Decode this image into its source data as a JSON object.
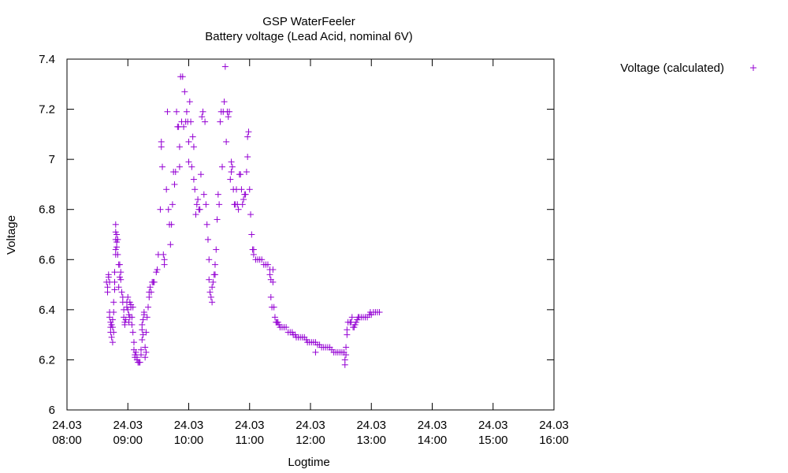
{
  "chart_data": {
    "type": "scatter",
    "title": "GSP WaterFeeler",
    "subtitle": "Battery voltage (Lead Acid, nominal 6V)",
    "xlabel": "Logtime",
    "ylabel": "Voltage",
    "xlim": [
      "08:00",
      "16:00"
    ],
    "ylim": [
      6,
      7.4
    ],
    "grid": false,
    "legend_position": "top-right, outside plot",
    "series_color": "#9400d3",
    "marker": "plus",
    "x_ticks": [
      {
        "date": "24.03",
        "time": "08:00",
        "hour": 8
      },
      {
        "date": "24.03",
        "time": "09:00",
        "hour": 9
      },
      {
        "date": "24.03",
        "time": "10:00",
        "hour": 10
      },
      {
        "date": "24.03",
        "time": "11:00",
        "hour": 11
      },
      {
        "date": "24.03",
        "time": "12:00",
        "hour": 12
      },
      {
        "date": "24.03",
        "time": "13:00",
        "hour": 13
      },
      {
        "date": "24.03",
        "time": "14:00",
        "hour": 14
      },
      {
        "date": "24.03",
        "time": "15:00",
        "hour": 15
      },
      {
        "date": "24.03",
        "time": "16:00",
        "hour": 16
      }
    ],
    "y_ticks": [
      {
        "value": 6,
        "label": "6"
      },
      {
        "value": 6.2,
        "label": "6.2"
      },
      {
        "value": 6.4,
        "label": "6.4"
      },
      {
        "value": 6.6,
        "label": "6.6"
      },
      {
        "value": 6.8,
        "label": "6.8"
      },
      {
        "value": 7,
        "label": "7"
      },
      {
        "value": 7.2,
        "label": "7.2"
      },
      {
        "value": 7.4,
        "label": "7.4"
      }
    ],
    "series": [
      {
        "name": "Voltage (calculated)",
        "points": [
          [
            "08:39",
            6.51
          ],
          [
            "08:40",
            6.49
          ],
          [
            "08:40",
            6.47
          ],
          [
            "08:41",
            6.53
          ],
          [
            "08:41",
            6.54
          ],
          [
            "08:42",
            6.51
          ],
          [
            "08:42",
            6.39
          ],
          [
            "08:42",
            6.37
          ],
          [
            "08:43",
            6.35
          ],
          [
            "08:43",
            6.33
          ],
          [
            "08:43",
            6.31
          ],
          [
            "08:44",
            6.29
          ],
          [
            "08:44",
            6.34
          ],
          [
            "08:45",
            6.33
          ],
          [
            "08:45",
            6.27
          ],
          [
            "08:45",
            6.36
          ],
          [
            "08:46",
            6.31
          ],
          [
            "08:46",
            6.39
          ],
          [
            "08:46",
            6.43
          ],
          [
            "08:47",
            6.51
          ],
          [
            "08:47",
            6.55
          ],
          [
            "08:47",
            6.48
          ],
          [
            "08:48",
            6.62
          ],
          [
            "08:48",
            6.64
          ],
          [
            "08:48",
            6.68
          ],
          [
            "08:48",
            6.71
          ],
          [
            "08:48",
            6.74
          ],
          [
            "08:49",
            6.7
          ],
          [
            "08:49",
            6.67
          ],
          [
            "08:49",
            6.65
          ],
          [
            "08:50",
            6.68
          ],
          [
            "08:50",
            6.62
          ],
          [
            "08:51",
            6.58
          ],
          [
            "08:51",
            6.49
          ],
          [
            "08:52",
            6.58
          ],
          [
            "08:52",
            6.53
          ],
          [
            "08:53",
            6.55
          ],
          [
            "08:53",
            6.52
          ],
          [
            "08:54",
            6.47
          ],
          [
            "08:55",
            6.45
          ],
          [
            "08:55",
            6.43
          ],
          [
            "08:56",
            6.4
          ],
          [
            "08:56",
            6.37
          ],
          [
            "08:57",
            6.35
          ],
          [
            "08:57",
            6.34
          ],
          [
            "08:58",
            6.36
          ],
          [
            "08:59",
            6.41
          ],
          [
            "08:59",
            6.43
          ],
          [
            "09:00",
            6.45
          ],
          [
            "09:00",
            6.4
          ],
          [
            "09:01",
            6.38
          ],
          [
            "09:01",
            6.35
          ],
          [
            "09:02",
            6.37
          ],
          [
            "09:02",
            6.43
          ],
          [
            "09:03",
            6.42
          ],
          [
            "09:03",
            6.41
          ],
          [
            "09:04",
            6.37
          ],
          [
            "09:04",
            6.34
          ],
          [
            "09:05",
            6.41
          ],
          [
            "09:05",
            6.31
          ],
          [
            "09:06",
            6.27
          ],
          [
            "09:06",
            6.24
          ],
          [
            "09:07",
            6.22
          ],
          [
            "09:07",
            6.21
          ],
          [
            "09:08",
            6.23
          ],
          [
            "09:09",
            6.21
          ],
          [
            "09:09",
            6.2
          ],
          [
            "09:10",
            6.19
          ],
          [
            "09:11",
            6.19
          ],
          [
            "09:12",
            6.19
          ],
          [
            "09:13",
            6.22
          ],
          [
            "09:13",
            6.24
          ],
          [
            "09:14",
            6.28
          ],
          [
            "09:14",
            6.32
          ],
          [
            "09:14",
            6.34
          ],
          [
            "09:15",
            6.36
          ],
          [
            "09:15",
            6.3
          ],
          [
            "09:16",
            6.38
          ],
          [
            "09:16",
            6.39
          ],
          [
            "09:17",
            6.25
          ],
          [
            "09:17",
            6.21
          ],
          [
            "09:18",
            6.23
          ],
          [
            "09:18",
            6.31
          ],
          [
            "09:19",
            6.37
          ],
          [
            "09:20",
            6.41
          ],
          [
            "09:21",
            6.45
          ],
          [
            "09:21",
            6.47
          ],
          [
            "09:22",
            6.49
          ],
          [
            "09:23",
            6.47
          ],
          [
            "09:24",
            6.51
          ],
          [
            "09:25",
            6.51
          ],
          [
            "09:26",
            6.51
          ],
          [
            "09:28",
            6.55
          ],
          [
            "09:29",
            6.56
          ],
          [
            "09:30",
            6.62
          ],
          [
            "09:32",
            6.8
          ],
          [
            "09:33",
            7.07
          ],
          [
            "09:33",
            7.05
          ],
          [
            "09:34",
            6.97
          ],
          [
            "09:35",
            6.62
          ],
          [
            "09:36",
            6.6
          ],
          [
            "09:36",
            6.58
          ],
          [
            "09:38",
            6.88
          ],
          [
            "09:39",
            7.19
          ],
          [
            "09:40",
            6.8
          ],
          [
            "09:41",
            6.74
          ],
          [
            "09:42",
            6.66
          ],
          [
            "09:43",
            6.74
          ],
          [
            "09:44",
            6.82
          ],
          [
            "09:45",
            6.95
          ],
          [
            "09:46",
            6.9
          ],
          [
            "09:47",
            6.95
          ],
          [
            "09:48",
            7.19
          ],
          [
            "09:49",
            7.13
          ],
          [
            "09:50",
            7.13
          ],
          [
            "09:51",
            6.97
          ],
          [
            "09:51",
            7.05
          ],
          [
            "09:52",
            7.33
          ],
          [
            "09:53",
            7.15
          ],
          [
            "09:54",
            7.33
          ],
          [
            "09:55",
            7.13
          ],
          [
            "09:56",
            7.27
          ],
          [
            "09:57",
            7.15
          ],
          [
            "09:58",
            7.19
          ],
          [
            "09:59",
            7.15
          ],
          [
            "10:00",
            7.07
          ],
          [
            "10:00",
            6.99
          ],
          [
            "10:01",
            7.23
          ],
          [
            "10:02",
            7.15
          ],
          [
            "10:03",
            6.97
          ],
          [
            "10:04",
            7.09
          ],
          [
            "10:05",
            6.92
          ],
          [
            "10:05",
            7.05
          ],
          [
            "10:06",
            6.88
          ],
          [
            "10:07",
            6.78
          ],
          [
            "10:08",
            6.82
          ],
          [
            "10:09",
            6.84
          ],
          [
            "10:10",
            6.8
          ],
          [
            "10:11",
            6.8
          ],
          [
            "10:12",
            6.94
          ],
          [
            "10:13",
            7.17
          ],
          [
            "10:14",
            7.19
          ],
          [
            "10:15",
            6.86
          ],
          [
            "10:16",
            7.15
          ],
          [
            "10:17",
            6.82
          ],
          [
            "10:18",
            6.74
          ],
          [
            "10:19",
            6.68
          ],
          [
            "10:20",
            6.6
          ],
          [
            "10:20",
            6.52
          ],
          [
            "10:21",
            6.47
          ],
          [
            "10:22",
            6.45
          ],
          [
            "10:23",
            6.43
          ],
          [
            "10:23",
            6.49
          ],
          [
            "10:24",
            6.51
          ],
          [
            "10:25",
            6.54
          ],
          [
            "10:26",
            6.54
          ],
          [
            "10:26",
            6.58
          ],
          [
            "10:27",
            6.64
          ],
          [
            "10:28",
            6.76
          ],
          [
            "10:29",
            6.86
          ],
          [
            "10:30",
            6.82
          ],
          [
            "10:31",
            7.15
          ],
          [
            "10:32",
            7.19
          ],
          [
            "10:33",
            6.97
          ],
          [
            "10:34",
            7.19
          ],
          [
            "10:35",
            7.23
          ],
          [
            "10:36",
            7.37
          ],
          [
            "10:37",
            7.07
          ],
          [
            "10:38",
            7.19
          ],
          [
            "10:39",
            7.17
          ],
          [
            "10:40",
            7.19
          ],
          [
            "10:41",
            6.92
          ],
          [
            "10:42",
            6.95
          ],
          [
            "10:42",
            6.99
          ],
          [
            "10:43",
            6.97
          ],
          [
            "10:44",
            6.88
          ],
          [
            "10:45",
            6.82
          ],
          [
            "10:46",
            6.82
          ],
          [
            "10:47",
            6.88
          ],
          [
            "10:48",
            6.82
          ],
          [
            "10:49",
            6.8
          ],
          [
            "10:50",
            6.94
          ],
          [
            "10:51",
            6.94
          ],
          [
            "10:52",
            6.88
          ],
          [
            "10:53",
            6.82
          ],
          [
            "10:54",
            6.84
          ],
          [
            "10:55",
            6.86
          ],
          [
            "10:56",
            6.86
          ],
          [
            "10:57",
            6.95
          ],
          [
            "10:58",
            7.01
          ],
          [
            "10:58",
            7.09
          ],
          [
            "10:59",
            7.11
          ],
          [
            "11:00",
            6.88
          ],
          [
            "11:01",
            6.78
          ],
          [
            "11:02",
            6.7
          ],
          [
            "11:03",
            6.64
          ],
          [
            "11:04",
            6.64
          ],
          [
            "11:04",
            6.62
          ],
          [
            "11:06",
            6.6
          ],
          [
            "11:08",
            6.6
          ],
          [
            "11:10",
            6.6
          ],
          [
            "11:12",
            6.6
          ],
          [
            "11:14",
            6.58
          ],
          [
            "11:16",
            6.58
          ],
          [
            "11:18",
            6.58
          ],
          [
            "11:20",
            6.56
          ],
          [
            "11:20",
            6.54
          ],
          [
            "11:21",
            6.52
          ],
          [
            "11:21",
            6.45
          ],
          [
            "11:22",
            6.41
          ],
          [
            "11:23",
            6.51
          ],
          [
            "11:23",
            6.56
          ],
          [
            "11:24",
            6.41
          ],
          [
            "11:25",
            6.37
          ],
          [
            "11:26",
            6.35
          ],
          [
            "11:27",
            6.35
          ],
          [
            "11:28",
            6.35
          ],
          [
            "11:29",
            6.34
          ],
          [
            "11:30",
            6.33
          ],
          [
            "11:32",
            6.33
          ],
          [
            "11:34",
            6.33
          ],
          [
            "11:36",
            6.33
          ],
          [
            "11:38",
            6.31
          ],
          [
            "11:40",
            6.31
          ],
          [
            "11:42",
            6.31
          ],
          [
            "11:43",
            6.3
          ],
          [
            "11:45",
            6.3
          ],
          [
            "11:46",
            6.29
          ],
          [
            "11:48",
            6.29
          ],
          [
            "11:50",
            6.29
          ],
          [
            "11:52",
            6.29
          ],
          [
            "11:54",
            6.29
          ],
          [
            "11:56",
            6.28
          ],
          [
            "11:57",
            6.27
          ],
          [
            "11:59",
            6.27
          ],
          [
            "12:01",
            6.27
          ],
          [
            "12:03",
            6.27
          ],
          [
            "12:05",
            6.27
          ],
          [
            "12:05",
            6.23
          ],
          [
            "12:07",
            6.26
          ],
          [
            "12:09",
            6.26
          ],
          [
            "12:11",
            6.25
          ],
          [
            "12:13",
            6.25
          ],
          [
            "12:15",
            6.25
          ],
          [
            "12:17",
            6.25
          ],
          [
            "12:19",
            6.25
          ],
          [
            "12:21",
            6.24
          ],
          [
            "12:23",
            6.23
          ],
          [
            "12:25",
            6.23
          ],
          [
            "12:27",
            6.23
          ],
          [
            "12:29",
            6.23
          ],
          [
            "12:31",
            6.23
          ],
          [
            "12:33",
            6.23
          ],
          [
            "12:34",
            6.18
          ],
          [
            "12:34",
            6.2
          ],
          [
            "12:35",
            6.22
          ],
          [
            "12:35",
            6.25
          ],
          [
            "12:36",
            6.3
          ],
          [
            "12:36",
            6.32
          ],
          [
            "12:37",
            6.35
          ],
          [
            "12:39",
            6.35
          ],
          [
            "12:40",
            6.35
          ],
          [
            "12:41",
            6.37
          ],
          [
            "12:42",
            6.33
          ],
          [
            "12:43",
            6.33
          ],
          [
            "12:44",
            6.34
          ],
          [
            "12:45",
            6.35
          ],
          [
            "12:46",
            6.36
          ],
          [
            "12:47",
            6.37
          ],
          [
            "12:48",
            6.37
          ],
          [
            "12:50",
            6.37
          ],
          [
            "12:52",
            6.37
          ],
          [
            "12:54",
            6.37
          ],
          [
            "12:56",
            6.37
          ],
          [
            "12:58",
            6.38
          ],
          [
            "12:59",
            6.39
          ],
          [
            "13:00",
            6.38
          ],
          [
            "13:02",
            6.39
          ],
          [
            "13:04",
            6.39
          ],
          [
            "13:06",
            6.39
          ],
          [
            "13:08",
            6.39
          ]
        ]
      }
    ]
  }
}
